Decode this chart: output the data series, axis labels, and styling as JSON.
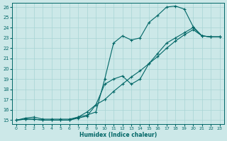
{
  "xlabel": "Humidex (Indice chaleur)",
  "bg_color": "#cce8e8",
  "grid_color": "#a8d4d4",
  "line_color": "#006666",
  "xlim_min": -0.5,
  "xlim_max": 23.5,
  "ylim_min": 14.6,
  "ylim_max": 26.4,
  "xticks": [
    0,
    1,
    2,
    3,
    4,
    5,
    6,
    7,
    8,
    9,
    10,
    11,
    12,
    13,
    14,
    15,
    16,
    17,
    18,
    19,
    20,
    21,
    22,
    23
  ],
  "yticks": [
    15,
    16,
    17,
    18,
    19,
    20,
    21,
    22,
    23,
    24,
    25,
    26
  ],
  "line1_x": [
    0,
    1,
    2,
    3,
    4,
    5,
    6,
    7,
    8,
    9,
    10,
    11,
    12,
    13,
    14,
    15,
    16,
    17,
    18,
    19,
    20,
    21,
    22,
    23
  ],
  "line1_y": [
    15,
    15.2,
    15.3,
    15.1,
    15.1,
    15.1,
    15.1,
    15.3,
    15.5,
    15.8,
    19.0,
    22.5,
    23.2,
    22.8,
    23.0,
    24.5,
    25.2,
    26.0,
    26.1,
    25.8,
    24.1,
    23.2,
    23.1,
    23.1
  ],
  "line2_x": [
    0,
    1,
    2,
    3,
    4,
    5,
    6,
    7,
    8,
    9,
    10,
    11,
    12,
    13,
    14,
    15,
    16,
    17,
    18,
    19,
    20,
    21,
    22,
    23
  ],
  "line2_y": [
    15,
    15.1,
    15.1,
    15.0,
    15.0,
    15.0,
    15.0,
    15.2,
    15.4,
    16.5,
    18.5,
    19.0,
    19.3,
    18.5,
    19.0,
    20.5,
    21.5,
    22.5,
    23.0,
    23.5,
    24.0,
    23.2,
    23.1,
    23.1
  ],
  "line3_x": [
    0,
    1,
    2,
    3,
    4,
    5,
    6,
    7,
    8,
    9,
    10,
    11,
    12,
    13,
    14,
    15,
    16,
    17,
    18,
    19,
    20,
    21,
    22,
    23
  ],
  "line3_y": [
    15,
    15.1,
    15.1,
    15.0,
    15.0,
    15.0,
    15.0,
    15.3,
    15.8,
    16.5,
    17.0,
    17.8,
    18.5,
    19.2,
    19.8,
    20.5,
    21.2,
    22.0,
    22.7,
    23.3,
    23.8,
    23.2,
    23.1,
    23.1
  ]
}
